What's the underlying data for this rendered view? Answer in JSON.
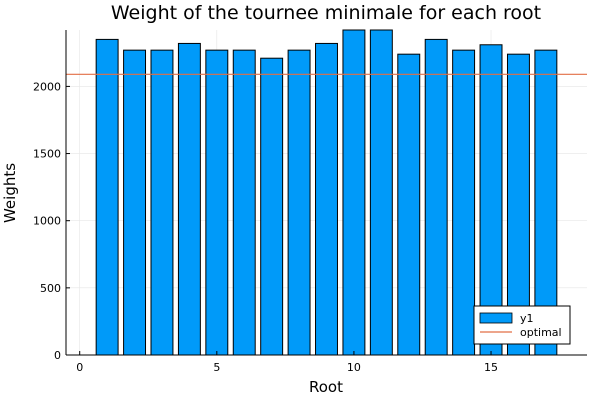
{
  "chart_data": {
    "type": "bar",
    "title": "Weight of the tournee minimale for each root",
    "xlabel": "Root",
    "ylabel": "Weights",
    "x": [
      1,
      2,
      3,
      4,
      5,
      6,
      7,
      8,
      9,
      10,
      11,
      12,
      13,
      14,
      15,
      16,
      17
    ],
    "series": [
      {
        "name": "y1",
        "color": "#009AF9",
        "values": [
          2350,
          2270,
          2270,
          2320,
          2270,
          2270,
          2210,
          2270,
          2320,
          2420,
          2420,
          2240,
          2350,
          2270,
          2310,
          2240,
          2270
        ]
      }
    ],
    "reference_line": {
      "name": "optimal",
      "value": 2090,
      "color": "#E26F46"
    },
    "xlim": [
      -0.5,
      18.5
    ],
    "ylim": [
      0,
      2420
    ],
    "xticks": [
      0,
      5,
      10,
      15
    ],
    "yticks": [
      0,
      500,
      1000,
      1500,
      2000
    ],
    "grid": true,
    "legend_position": "bottom-right"
  }
}
